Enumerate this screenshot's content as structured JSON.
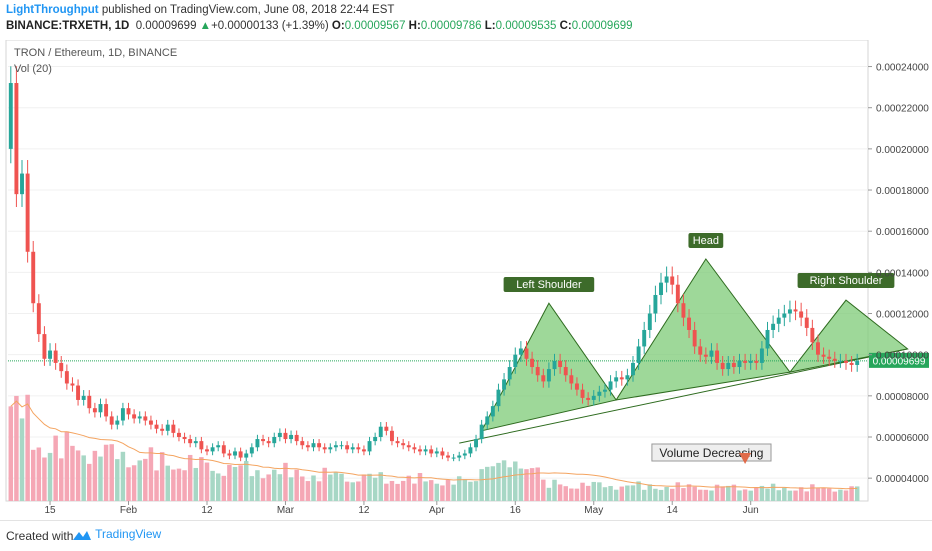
{
  "header": {
    "author": "LightThroughput",
    "published_text": "published on TradingView.com, June 08, 2018 22:44 EST",
    "symbol": "BINANCE:TRXETH, 1D",
    "last_price": "0.00009699",
    "change": "+0.00000133 (+1.39%)",
    "o_label": "O:",
    "o_value": "0.00009567",
    "h_label": "H:",
    "h_value": "0.00009786",
    "l_label": "L:",
    "l_value": "0.00009535",
    "c_label": "C:",
    "c_value": "0.00009699"
  },
  "legend": {
    "title": "TRON / Ethereum, 1D, BINANCE",
    "volume": "Vol (20)"
  },
  "footer": {
    "created_with": "Created with",
    "brand": "TradingView"
  },
  "colors": {
    "up": "#26a69a",
    "down": "#ef5350",
    "vol_up": "#a7d7c5",
    "vol_down": "#f5a7b5",
    "pattern_fill": "#7ecb77",
    "pattern_stroke": "#2e6b1f",
    "label_bg": "#3d6b2a",
    "price_tag": "#26a65b",
    "vol_ma": "#f4a460"
  },
  "chart_data": {
    "type": "candlestick",
    "title": "TRON / Ethereum, 1D, BINANCE",
    "x_tick_labels": [
      "15",
      "Feb",
      "12",
      "Mar",
      "12",
      "Apr",
      "16",
      "May",
      "14",
      "Jun"
    ],
    "y_tick_labels": [
      "0.00004000",
      "0.00006000",
      "0.00008000",
      "0.00010000",
      "0.00012000",
      "0.00014000",
      "0.00016000",
      "0.00018000",
      "0.00020000",
      "0.00022000",
      "0.00024000"
    ],
    "ylim": [
      2.89e-05,
      0.0002529
    ],
    "last_price": 9.699e-05,
    "annotations": [
      {
        "text": "Left Shoulder",
        "type": "label"
      },
      {
        "text": "Head",
        "type": "label"
      },
      {
        "text": "Right Shoulder",
        "type": "label"
      },
      {
        "text": "Volume Decreasing",
        "type": "callout"
      }
    ],
    "pattern": {
      "name": "head-and-shoulders",
      "neckline": [
        [
          6.3e-05,
          0.0001028
        ]
      ],
      "peaks": [
        0.000125,
        0.0001465,
        0.0001265
      ]
    },
    "candles_close": [
      0.000232,
      0.000178,
      0.000188,
      0.00015,
      0.000125,
      0.00011,
      9.8e-05,
      0.000102,
      9.6e-05,
      9.2e-05,
      8.6e-05,
      8.5e-05,
      7.8e-05,
      8e-05,
      7.4e-05,
      7.2e-05,
      7.6e-05,
      7e-05,
      6.6e-05,
      6.8e-05,
      7.4e-05,
      7.1e-05,
      6.9e-05,
      7e-05,
      6.8e-05,
      6.6e-05,
      6.4e-05,
      6.3e-05,
      6.6e-05,
      6.2e-05,
      6e-05,
      5.9e-05,
      5.7e-05,
      5.8e-05,
      5.4e-05,
      5.3e-05,
      5.5e-05,
      5.6e-05,
      5.2e-05,
      5.1e-05,
      5.3e-05,
      5e-05,
      5.2e-05,
      5.5e-05,
      5.9e-05,
      5.8e-05,
      5.7e-05,
      6e-05,
      6.2e-05,
      5.9e-05,
      6.1e-05,
      5.8e-05,
      5.6e-05,
      5.5e-05,
      5.7e-05,
      5.5e-05,
      5.4e-05,
      5.5e-05,
      5.6e-05,
      5.6e-05,
      5.4e-05,
      5.5e-05,
      5.4e-05,
      5.3e-05,
      5.8e-05,
      6e-05,
      6.5e-05,
      6.3e-05,
      5.8e-05,
      5.7e-05,
      5.6e-05,
      5.5e-05,
      5.4e-05,
      5.3e-05,
      5.4e-05,
      5.2e-05,
      5.3e-05,
      5.1e-05,
      5e-05,
      5e-05,
      5.1e-05,
      5.2e-05,
      5.5e-05,
      5.9e-05,
      6.6e-05,
      7e-05,
      7.5e-05,
      8.3e-05,
      8.8e-05,
      9.4e-05,
      0.0001,
      0.000103,
      9.8e-05,
      9.4e-05,
      9e-05,
      8.7e-05,
      9.3e-05,
      9.7e-05,
      9.4e-05,
      9e-05,
      8.6e-05,
      8.3e-05,
      7.9e-05,
      7.8e-05,
      8e-05,
      8.2e-05,
      8.3e-05,
      8.7e-05,
      8.9e-05,
      8.8e-05,
      9e-05,
      9.6e-05,
      0.000104,
      0.000112,
      0.00012,
      0.000129,
      0.000135,
      0.000138,
      0.000134,
      0.000125,
      0.000118,
      0.000112,
      0.000104,
      0.0001,
      9.9e-05,
      0.000102,
      9.6e-05,
      9.3e-05,
      9.6e-05,
      9.4e-05,
      9.7e-05,
      9.6e-05,
      9.7e-05,
      9.6e-05,
      0.000103,
      0.000112,
      0.000115,
      0.000118,
      0.00012,
      0.000122,
      0.000121,
      0.000118,
      0.000113,
      0.000106,
      0.0001,
      9.9e-05,
      9.8e-05,
      9.7e-05,
      9.7e-05,
      9.6e-05,
      9.5e-05,
      9.7e-05
    ],
    "volume": "relative, decreasing overall"
  }
}
